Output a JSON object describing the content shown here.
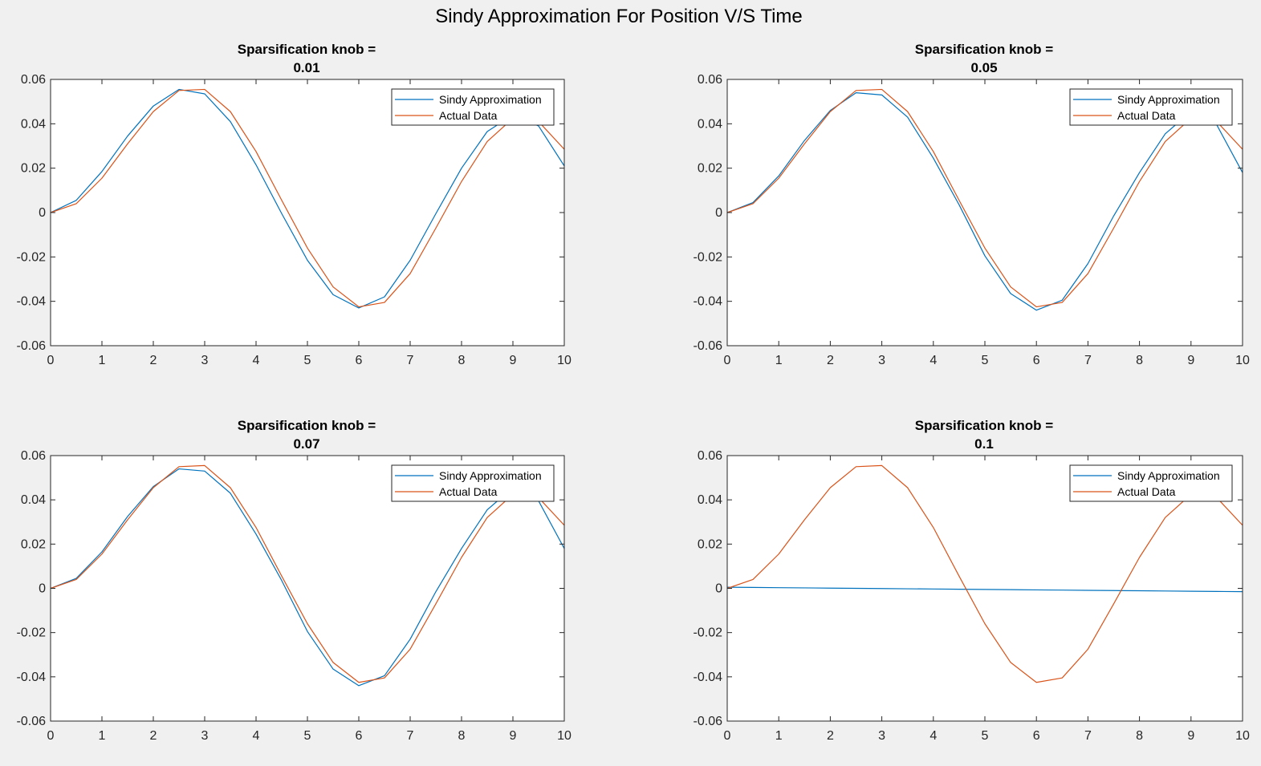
{
  "figure": {
    "title": "Sindy Approximation For Position V/S Time"
  },
  "colors": {
    "sindy": "#0072BD",
    "actual": "#D95319",
    "axes_bg": "#ffffff",
    "figure_bg": "#f0f0f0"
  },
  "chart_data": [
    {
      "type": "line",
      "title_line1": "Sparsification knob =",
      "title_line2": "0.01",
      "xlim": [
        0,
        10
      ],
      "ylim": [
        -0.06,
        0.06
      ],
      "xticks": [
        "0",
        "1",
        "2",
        "3",
        "4",
        "5",
        "6",
        "7",
        "8",
        "9",
        "10"
      ],
      "yticks": [
        "-0.06",
        "-0.04",
        "-0.02",
        "0",
        "0.02",
        "0.04",
        "0.06"
      ],
      "legend": {
        "position": "top-right",
        "entries": [
          "Sindy Approximation",
          "Actual Data"
        ]
      },
      "x": [
        0,
        0.5,
        1,
        1.5,
        2,
        2.5,
        3,
        3.5,
        4,
        4.5,
        5,
        5.5,
        6,
        6.5,
        7,
        7.5,
        8,
        8.5,
        9,
        9.5,
        10
      ],
      "series": [
        {
          "name": "Sindy Approximation",
          "values": [
            0,
            0.0055,
            0.0185,
            0.0345,
            0.048,
            0.0555,
            0.0535,
            0.041,
            0.0215,
            -0.0005,
            -0.0215,
            -0.037,
            -0.043,
            -0.038,
            -0.0215,
            -0.0005,
            0.02,
            0.0365,
            0.044,
            0.039,
            0.021
          ]
        },
        {
          "name": "Actual Data",
          "values": [
            0,
            0.004,
            0.0155,
            0.031,
            0.0455,
            0.055,
            0.0555,
            0.0455,
            0.0275,
            0.0055,
            -0.016,
            -0.0335,
            -0.0425,
            -0.0405,
            -0.0275,
            -0.007,
            0.014,
            0.032,
            0.0425,
            0.041,
            0.0285
          ]
        }
      ]
    },
    {
      "type": "line",
      "title_line1": "Sparsification knob =",
      "title_line2": "0.05",
      "xlim": [
        0,
        10
      ],
      "ylim": [
        -0.06,
        0.06
      ],
      "xticks": [
        "0",
        "1",
        "2",
        "3",
        "4",
        "5",
        "6",
        "7",
        "8",
        "9",
        "10"
      ],
      "yticks": [
        "-0.06",
        "-0.04",
        "-0.02",
        "0",
        "0.02",
        "0.04",
        "0.06"
      ],
      "legend": {
        "position": "top-right",
        "entries": [
          "Sindy Approximation",
          "Actual Data"
        ]
      },
      "x": [
        0,
        0.5,
        1,
        1.5,
        2,
        2.5,
        3,
        3.5,
        4,
        4.5,
        5,
        5.5,
        6,
        6.5,
        7,
        7.5,
        8,
        8.5,
        9,
        9.5,
        10
      ],
      "series": [
        {
          "name": "Sindy Approximation",
          "values": [
            0,
            0.0045,
            0.0165,
            0.0325,
            0.046,
            0.054,
            0.053,
            0.043,
            0.0245,
            0.0035,
            -0.0195,
            -0.0365,
            -0.044,
            -0.0395,
            -0.023,
            -0.0015,
            0.018,
            0.0355,
            0.0455,
            0.0395,
            0.018
          ]
        },
        {
          "name": "Actual Data",
          "values": [
            0,
            0.004,
            0.0155,
            0.031,
            0.0455,
            0.055,
            0.0555,
            0.0455,
            0.0275,
            0.0055,
            -0.016,
            -0.0335,
            -0.0425,
            -0.0405,
            -0.0275,
            -0.007,
            0.014,
            0.032,
            0.0425,
            0.041,
            0.0285
          ]
        }
      ]
    },
    {
      "type": "line",
      "title_line1": "Sparsification knob =",
      "title_line2": "0.07",
      "xlim": [
        0,
        10
      ],
      "ylim": [
        -0.06,
        0.06
      ],
      "xticks": [
        "0",
        "1",
        "2",
        "3",
        "4",
        "5",
        "6",
        "7",
        "8",
        "9",
        "10"
      ],
      "yticks": [
        "-0.06",
        "-0.04",
        "-0.02",
        "0",
        "0.02",
        "0.04",
        "0.06"
      ],
      "legend": {
        "position": "top-right",
        "entries": [
          "Sindy Approximation",
          "Actual Data"
        ]
      },
      "x": [
        0,
        0.5,
        1,
        1.5,
        2,
        2.5,
        3,
        3.5,
        4,
        4.5,
        5,
        5.5,
        6,
        6.5,
        7,
        7.5,
        8,
        8.5,
        9,
        9.5,
        10
      ],
      "series": [
        {
          "name": "Sindy Approximation",
          "values": [
            0,
            0.0045,
            0.0165,
            0.0325,
            0.046,
            0.054,
            0.053,
            0.043,
            0.0245,
            0.0035,
            -0.0195,
            -0.0365,
            -0.044,
            -0.0395,
            -0.023,
            -0.0015,
            0.018,
            0.0355,
            0.0455,
            0.0395,
            0.018
          ]
        },
        {
          "name": "Actual Data",
          "values": [
            0,
            0.004,
            0.0155,
            0.031,
            0.0455,
            0.055,
            0.0555,
            0.0455,
            0.0275,
            0.0055,
            -0.016,
            -0.0335,
            -0.0425,
            -0.0405,
            -0.0275,
            -0.007,
            0.014,
            0.032,
            0.0425,
            0.041,
            0.0285
          ]
        }
      ]
    },
    {
      "type": "line",
      "title_line1": "Sparsification knob =",
      "title_line2": "0.1",
      "xlim": [
        0,
        10
      ],
      "ylim": [
        -0.06,
        0.06
      ],
      "xticks": [
        "0",
        "1",
        "2",
        "3",
        "4",
        "5",
        "6",
        "7",
        "8",
        "9",
        "10"
      ],
      "yticks": [
        "-0.06",
        "-0.04",
        "-0.02",
        "0",
        "0.02",
        "0.04",
        "0.06"
      ],
      "legend": {
        "position": "top-right",
        "entries": [
          "Sindy Approximation",
          "Actual Data"
        ]
      },
      "x": [
        0,
        0.5,
        1,
        1.5,
        2,
        2.5,
        3,
        3.5,
        4,
        4.5,
        5,
        5.5,
        6,
        6.5,
        7,
        7.5,
        8,
        8.5,
        9,
        9.5,
        10
      ],
      "series": [
        {
          "name": "Sindy Approximation",
          "values": [
            0.0005,
            0.0004,
            0.0003,
            0.0002,
            0.0001,
            0,
            -0.0001,
            -0.0002,
            -0.0003,
            -0.0004,
            -0.0005,
            -0.0006,
            -0.0007,
            -0.0008,
            -0.0009,
            -0.001,
            -0.0011,
            -0.0012,
            -0.0013,
            -0.0014,
            -0.0015
          ]
        },
        {
          "name": "Actual Data",
          "values": [
            0,
            0.004,
            0.0155,
            0.031,
            0.0455,
            0.055,
            0.0555,
            0.0455,
            0.0275,
            0.0055,
            -0.016,
            -0.0335,
            -0.0425,
            -0.0405,
            -0.0275,
            -0.007,
            0.014,
            0.032,
            0.0425,
            0.041,
            0.0285
          ]
        }
      ]
    }
  ]
}
